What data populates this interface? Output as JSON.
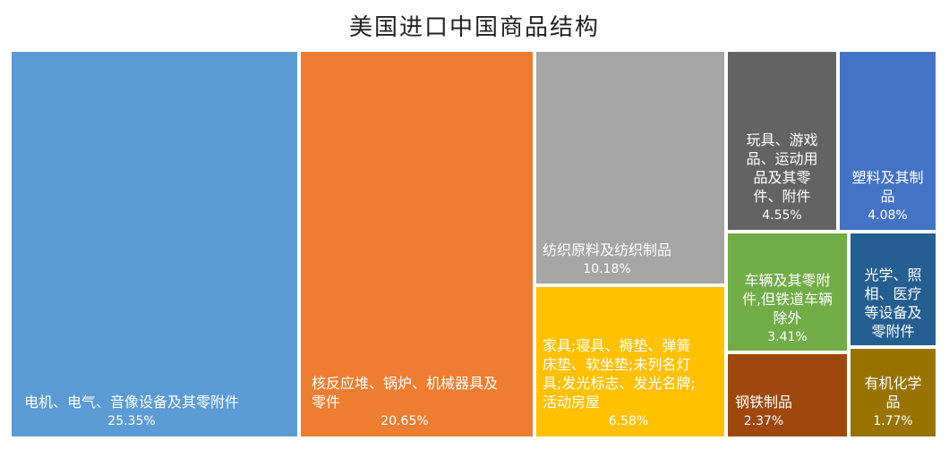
{
  "chart_data": {
    "type": "treemap",
    "title": "美国进口中国商品结构",
    "items": [
      {
        "label": "电机、电气、音像设备及其零附件",
        "lines": [
          "电机、电气、音像设备及其零附件"
        ],
        "value": 25.35,
        "value_label": "25.35%",
        "color": "#5b9bd5"
      },
      {
        "label": "核反应堆、锅炉、机械器具及零件",
        "lines": [
          "核反应堆、锅炉、机械器具及",
          "零件"
        ],
        "value": 20.65,
        "value_label": "20.65%",
        "color": "#ed7d31"
      },
      {
        "label": "纺织原料及纺织制品",
        "lines": [
          "纺织原料及纺织制品"
        ],
        "value": 10.18,
        "value_label": "10.18%",
        "color": "#a5a5a5"
      },
      {
        "label": "家具;寝具、褥垫、弹簧床垫、软坐垫;未列名灯具;发光标志、发光名牌;活动房屋",
        "lines": [
          "家具;寝具、褥垫、弹簧",
          "床垫、软坐垫;未列名灯",
          "具;发光标志、发光名牌;",
          "活动房屋"
        ],
        "value": 6.58,
        "value_label": "6.58%",
        "color": "#ffc000"
      },
      {
        "label": "玩具、游戏品、运动用品及其零件、附件",
        "lines": [
          "玩具、游戏",
          "品、运动用",
          "品及其零",
          "件、附件"
        ],
        "value": 4.55,
        "value_label": "4.55%",
        "color": "#636363"
      },
      {
        "label": "塑料及其制品",
        "lines": [
          "塑料及其制",
          "品"
        ],
        "value": 4.08,
        "value_label": "4.08%",
        "color": "#4472c4"
      },
      {
        "label": "车辆及其零附件,但铁道车辆除外",
        "lines": [
          "车辆及其零附",
          "件,但铁道车辆",
          "除外"
        ],
        "value": 3.41,
        "value_label": "3.41%",
        "color": "#70ad47"
      },
      {
        "label": "光学、照相、医疗等设备及零附件",
        "lines": [
          "光学、照",
          "相、医疗",
          "等设备及",
          "零附件"
        ],
        "value": null,
        "value_label": "",
        "color": "#255e91"
      },
      {
        "label": "钢铁制品",
        "lines": [
          "钢铁制品"
        ],
        "value": 2.37,
        "value_label": "2.37%",
        "color": "#9e480e"
      },
      {
        "label": "有机化学品",
        "lines": [
          "有机化学",
          "品"
        ],
        "value": 1.77,
        "value_label": "1.77%",
        "color": "#997300"
      }
    ]
  }
}
